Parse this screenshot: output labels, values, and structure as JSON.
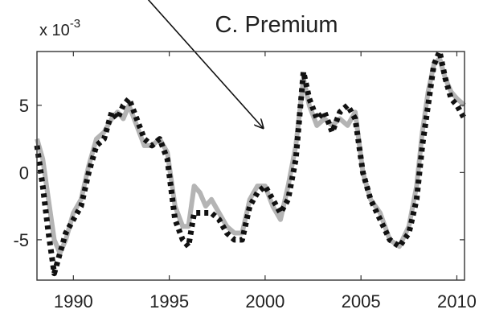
{
  "chart_data": {
    "type": "line",
    "title": "C. Premium",
    "exponent_label": "x 10",
    "exponent_power": "-3",
    "xlabel": "",
    "ylabel": "",
    "xlim": [
      1988.1,
      2010.4
    ],
    "ylim": [
      -8,
      9
    ],
    "x_ticks": [
      1990,
      1995,
      2000,
      2005,
      2010
    ],
    "x_tick_labels": [
      "1990",
      "1995",
      "2000",
      "2005",
      "2010"
    ],
    "y_ticks": [
      -5,
      0,
      5
    ],
    "y_tick_labels": [
      "-5",
      "0",
      "5"
    ],
    "grid": false,
    "legend": "none",
    "annotations": [
      {
        "type": "arrow",
        "from": [
          1993.5,
          13.5
        ],
        "to": [
          1999.9,
          3.3
        ]
      }
    ],
    "series": [
      {
        "style": "solid",
        "color": "#b4b4b4",
        "x": [
          1988.1,
          1988.4,
          1988.7,
          1989.0,
          1989.3,
          1989.6,
          1990.0,
          1990.4,
          1990.8,
          1991.2,
          1991.6,
          1992.0,
          1992.3,
          1992.6,
          1992.9,
          1993.3,
          1993.7,
          1994.1,
          1994.5,
          1994.9,
          1995.3,
          1995.7,
          1996.0,
          1996.3,
          1996.6,
          1996.9,
          1997.2,
          1997.6,
          1998.0,
          1998.4,
          1998.8,
          1999.2,
          1999.6,
          2000.0,
          2000.4,
          2000.8,
          2001.2,
          2001.6,
          2002.0,
          2002.3,
          2002.7,
          2003.1,
          2003.5,
          2003.9,
          2004.3,
          2004.7,
          2005.1,
          2005.5,
          2006.0,
          2006.5,
          2007.0,
          2007.5,
          2007.9,
          2008.2,
          2008.5,
          2008.8,
          2009.1,
          2009.4,
          2009.7,
          2010.0,
          2010.4
        ],
        "y": [
          2.5,
          1.0,
          -2.0,
          -5.0,
          -6.0,
          -5.0,
          -3.0,
          -2.0,
          0.5,
          2.5,
          3.0,
          4.0,
          4.5,
          4.0,
          5.0,
          3.5,
          2.0,
          2.0,
          2.5,
          1.5,
          -2.5,
          -4.0,
          -4.0,
          -1.0,
          -1.5,
          -2.5,
          -2.0,
          -3.0,
          -4.0,
          -4.5,
          -4.5,
          -2.0,
          -1.0,
          -1.0,
          -2.5,
          -3.5,
          -1.0,
          2.0,
          7.0,
          5.0,
          3.5,
          4.0,
          3.5,
          4.0,
          3.5,
          4.5,
          0.0,
          -2.0,
          -3.0,
          -5.0,
          -5.5,
          -4.0,
          -1.0,
          3.0,
          6.0,
          8.0,
          8.5,
          7.0,
          6.0,
          5.5,
          5.0
        ]
      },
      {
        "style": "dotted",
        "color": "#111111",
        "x": [
          1988.1,
          1988.4,
          1988.7,
          1989.0,
          1989.3,
          1989.6,
          1990.0,
          1990.4,
          1990.8,
          1991.2,
          1991.6,
          1992.0,
          1992.3,
          1992.6,
          1992.9,
          1993.3,
          1993.7,
          1994.1,
          1994.5,
          1994.9,
          1995.3,
          1995.7,
          1996.0,
          1996.3,
          1996.6,
          1996.9,
          1997.2,
          1997.6,
          1998.0,
          1998.4,
          1998.8,
          1999.2,
          1999.6,
          2000.0,
          2000.4,
          2000.8,
          2001.2,
          2001.6,
          2002.0,
          2002.3,
          2002.7,
          2003.1,
          2003.5,
          2003.9,
          2004.3,
          2004.7,
          2005.1,
          2005.5,
          2006.0,
          2006.5,
          2007.0,
          2007.5,
          2007.9,
          2008.2,
          2008.5,
          2008.8,
          2009.1,
          2009.4,
          2009.7,
          2010.0,
          2010.4
        ],
        "y": [
          2.0,
          -1.0,
          -4.5,
          -7.5,
          -6.0,
          -4.5,
          -3.5,
          -2.5,
          0.0,
          2.0,
          2.5,
          4.5,
          4.0,
          5.0,
          5.5,
          4.0,
          2.5,
          2.0,
          2.5,
          1.0,
          -3.5,
          -5.0,
          -5.5,
          -3.0,
          -3.0,
          -3.0,
          -3.0,
          -3.5,
          -4.5,
          -5.0,
          -5.0,
          -2.5,
          -1.5,
          -1.0,
          -2.0,
          -3.0,
          -2.0,
          1.0,
          7.5,
          5.5,
          4.0,
          4.5,
          3.0,
          4.5,
          5.0,
          4.0,
          0.0,
          -2.0,
          -3.5,
          -5.0,
          -5.5,
          -4.5,
          -2.0,
          2.0,
          5.0,
          8.0,
          9.0,
          7.0,
          5.5,
          5.0,
          4.0
        ]
      }
    ]
  }
}
